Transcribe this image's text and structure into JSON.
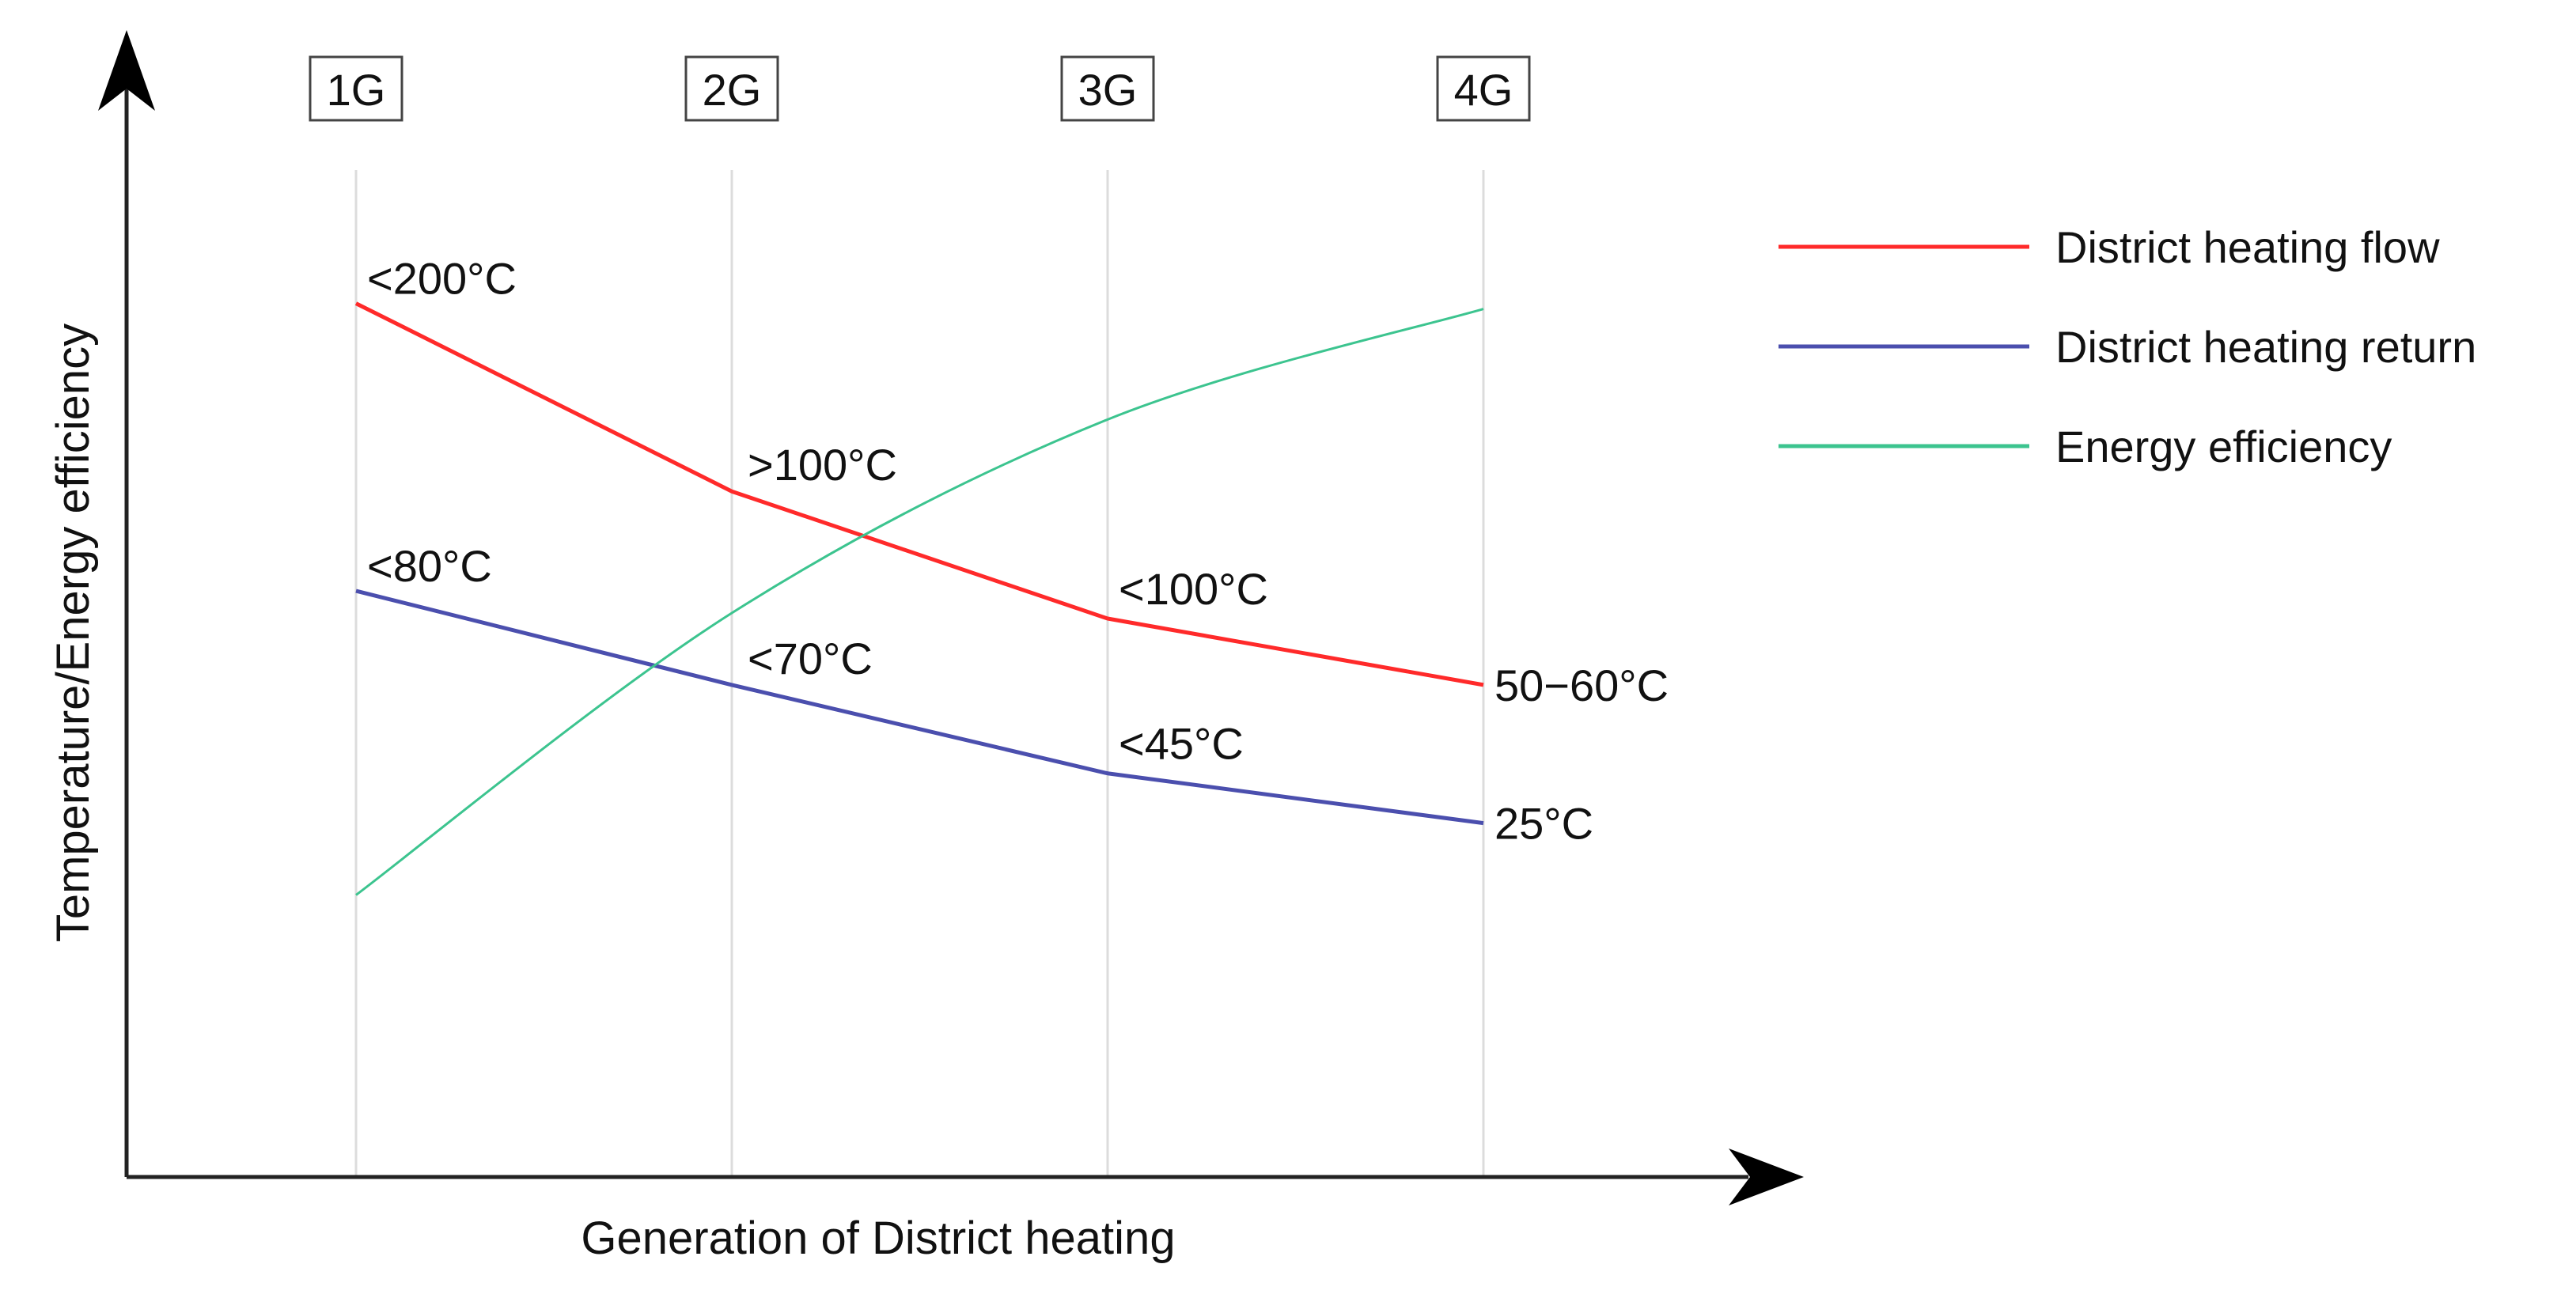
{
  "chart_data": {
    "type": "line",
    "title": "",
    "xlabel": "Generation of District heating",
    "ylabel": "Temperature/Energy efficiency",
    "categories": [
      "1G",
      "2G",
      "3G",
      "4G"
    ],
    "ylim": [
      0,
      100
    ],
    "grid": "vertical lines at each generation",
    "legend_position": "right",
    "series": [
      {
        "name": "District heating flow",
        "color": "#ff2a2a",
        "values": [
          79,
          62,
          50.5,
          44.5
        ],
        "labels": [
          "<200°C",
          ">100°C",
          "<100°C",
          "50−60°C"
        ]
      },
      {
        "name": "District heating return",
        "color": "#4b4fae",
        "values": [
          53,
          44.5,
          36.5,
          32
        ],
        "labels": [
          "<80°C",
          "<70°C",
          "<45°C",
          "25°C"
        ]
      },
      {
        "name": "Energy efficiency",
        "color": "#3cc48f",
        "values": [
          25.5,
          51,
          68.5,
          78.5
        ],
        "labels": []
      }
    ]
  }
}
